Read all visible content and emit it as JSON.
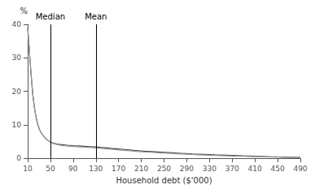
{
  "chart_data": {
    "type": "line",
    "xlabel": "Household debt ($'000)",
    "ylabel": "%",
    "xlim": [
      10,
      490
    ],
    "ylim": [
      0,
      40
    ],
    "xticks": [
      10,
      50,
      90,
      130,
      170,
      210,
      250,
      290,
      330,
      370,
      410,
      450,
      490
    ],
    "yticks": [
      0,
      10,
      20,
      30,
      40
    ],
    "grid": false,
    "annotations": [
      {
        "text": "Median",
        "x": 50,
        "color": "#000000"
      },
      {
        "text": "Mean",
        "x": 130,
        "color": "#000000"
      }
    ],
    "x": [
      10,
      13,
      16,
      19,
      22,
      25,
      28,
      31,
      34,
      37,
      40,
      43,
      46,
      50,
      55,
      60,
      65,
      70,
      75,
      80,
      85,
      90,
      95,
      100,
      110,
      120,
      130,
      140,
      150,
      160,
      170,
      180,
      190,
      200,
      210,
      220,
      230,
      240,
      250,
      260,
      270,
      280,
      290,
      300,
      310,
      320,
      330,
      340,
      350,
      360,
      370,
      380,
      390,
      400,
      410,
      420,
      430,
      440,
      450,
      460,
      470,
      480,
      490
    ],
    "series": [
      {
        "color": "#444444",
        "values": [
          39.0,
          32.0,
          25.0,
          19.0,
          15.0,
          12.0,
          10.0,
          8.5,
          7.5,
          6.8,
          6.2,
          5.7,
          5.3,
          4.8,
          4.5,
          4.3,
          4.15,
          4.05,
          3.95,
          3.88,
          3.82,
          3.75,
          3.7,
          3.65,
          3.55,
          3.45,
          3.35,
          3.2,
          3.05,
          2.9,
          2.75,
          2.6,
          2.45,
          2.3,
          2.15,
          2.05,
          1.95,
          1.85,
          1.75,
          1.65,
          1.55,
          1.45,
          1.35,
          1.27,
          1.2,
          1.12,
          1.05,
          0.98,
          0.92,
          0.86,
          0.8,
          0.74,
          0.68,
          0.63,
          0.58,
          0.53,
          0.48,
          0.43,
          0.38,
          0.34,
          0.3,
          0.26,
          0.22
        ]
      },
      {
        "color": "#999999",
        "values": [
          39.0,
          32.0,
          25.0,
          19.0,
          15.0,
          12.0,
          10.0,
          8.5,
          7.5,
          6.8,
          6.2,
          5.7,
          5.3,
          4.8,
          4.4,
          4.15,
          3.95,
          3.8,
          3.7,
          3.62,
          3.55,
          3.48,
          3.42,
          3.38,
          3.28,
          3.18,
          3.08,
          2.92,
          2.76,
          2.6,
          2.46,
          2.32,
          2.18,
          2.05,
          1.92,
          1.82,
          1.72,
          1.62,
          1.52,
          1.43,
          1.34,
          1.25,
          1.16,
          1.09,
          1.02,
          0.95,
          0.88,
          0.82,
          0.76,
          0.71,
          0.65,
          0.6,
          0.55,
          0.5,
          0.46,
          0.42,
          0.38,
          0.34,
          0.3,
          0.26,
          0.23,
          0.19,
          0.16
        ]
      }
    ]
  }
}
